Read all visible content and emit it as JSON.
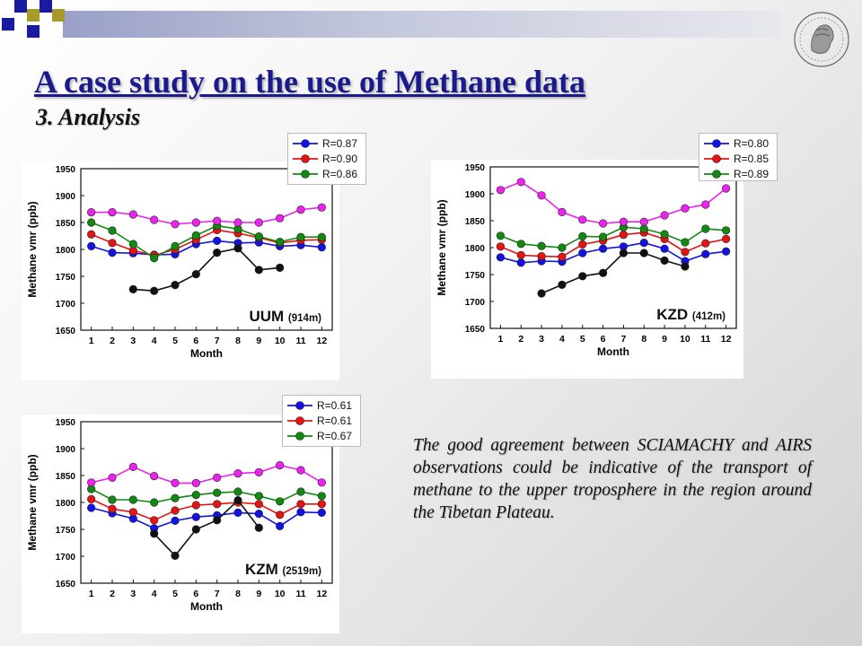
{
  "slide": {
    "title": "A case study on the use of Methane data",
    "subtitle": "3. Analysis",
    "body_text": "The good agreement between SCIAMACHY and AIRS observations could be indicative of the transport of methane to the upper troposphere in the region around the Tibetan Plateau."
  },
  "colors": {
    "title": "#1a1a8c",
    "series": [
      "#1212e6",
      "#e81212",
      "#128a12",
      "#ee22ee",
      "#111111"
    ]
  },
  "icons": [
    "university-logo-icon"
  ],
  "chart_data": [
    {
      "type": "line",
      "station": "UUM",
      "elevation": "(914m)",
      "xlabel": "Month",
      "ylabel": "Methane vmr (ppb)",
      "x": [
        1,
        2,
        3,
        4,
        5,
        6,
        7,
        8,
        9,
        10,
        11,
        12
      ],
      "ylim": [
        1650,
        1950
      ],
      "yticks": [
        1650,
        1700,
        1750,
        1800,
        1850,
        1900,
        1950
      ],
      "grid": false,
      "legend": [
        {
          "label": "R=0.87",
          "color": "#1212e6"
        },
        {
          "label": "R=0.90",
          "color": "#e81212"
        },
        {
          "label": "R=0.86",
          "color": "#128a12"
        }
      ],
      "series": [
        {
          "color": "#1212e6",
          "values": [
            1806,
            1794,
            1793,
            1790,
            1791,
            1810,
            1816,
            1812,
            1813,
            1806,
            1808,
            1804
          ]
        },
        {
          "color": "#e81212",
          "values": [
            1828,
            1812,
            1798,
            1789,
            1800,
            1818,
            1836,
            1830,
            1822,
            1812,
            1817,
            1818
          ]
        },
        {
          "color": "#128a12",
          "values": [
            1850,
            1835,
            1810,
            1784,
            1806,
            1826,
            1844,
            1838,
            1824,
            1814,
            1823,
            1823
          ]
        },
        {
          "color": "#ee22ee",
          "values": [
            1869,
            1869,
            1865,
            1855,
            1847,
            1850,
            1853,
            1850,
            1850,
            1858,
            1874,
            1878
          ]
        },
        {
          "color": "#111111",
          "values": [
            null,
            null,
            1726,
            1723,
            1734,
            1754,
            1794,
            1802,
            1762,
            1766,
            null,
            null
          ]
        }
      ]
    },
    {
      "type": "line",
      "station": "KZD",
      "elevation": "(412m)",
      "xlabel": "Month",
      "ylabel": "Methane vmr (ppb)",
      "x": [
        1,
        2,
        3,
        4,
        5,
        6,
        7,
        8,
        9,
        10,
        11,
        12
      ],
      "ylim": [
        1650,
        1950
      ],
      "yticks": [
        1650,
        1700,
        1750,
        1800,
        1850,
        1900,
        1950
      ],
      "grid": false,
      "legend": [
        {
          "label": "R=0.80",
          "color": "#1212e6"
        },
        {
          "label": "R=0.85",
          "color": "#e81212"
        },
        {
          "label": "R=0.89",
          "color": "#128a12"
        }
      ],
      "series": [
        {
          "color": "#1212e6",
          "values": [
            1782,
            1772,
            1775,
            1774,
            1790,
            1798,
            1802,
            1809,
            1798,
            1775,
            1788,
            1793
          ]
        },
        {
          "color": "#e81212",
          "values": [
            1802,
            1786,
            1784,
            1783,
            1806,
            1813,
            1824,
            1828,
            1816,
            1792,
            1808,
            1816
          ]
        },
        {
          "color": "#128a12",
          "values": [
            1822,
            1807,
            1803,
            1800,
            1821,
            1820,
            1838,
            1835,
            1825,
            1810,
            1835,
            1832
          ]
        },
        {
          "color": "#ee22ee",
          "values": [
            1907,
            1922,
            1897,
            1866,
            1852,
            1845,
            1848,
            1848,
            1860,
            1873,
            1880,
            1910
          ]
        },
        {
          "color": "#111111",
          "values": [
            null,
            null,
            1715,
            1731,
            1747,
            1753,
            1790,
            1790,
            1776,
            1765,
            null,
            null
          ]
        }
      ]
    },
    {
      "type": "line",
      "station": "KZM",
      "elevation": "(2519m)",
      "xlabel": "Month",
      "ylabel": "Methane vmr (ppb)",
      "x": [
        1,
        2,
        3,
        4,
        5,
        6,
        7,
        8,
        9,
        10,
        11,
        12
      ],
      "ylim": [
        1650,
        1950
      ],
      "yticks": [
        1650,
        1700,
        1750,
        1800,
        1850,
        1900,
        1950
      ],
      "grid": false,
      "legend": [
        {
          "label": "R=0.61",
          "color": "#1212e6"
        },
        {
          "label": "R=0.61",
          "color": "#e81212"
        },
        {
          "label": "R=0.67",
          "color": "#128a12"
        }
      ],
      "series": [
        {
          "color": "#1212e6",
          "values": [
            1790,
            1780,
            1770,
            1752,
            1766,
            1773,
            1776,
            1781,
            1779,
            1756,
            1782,
            1781
          ]
        },
        {
          "color": "#e81212",
          "values": [
            1806,
            1788,
            1782,
            1767,
            1785,
            1795,
            1797,
            1800,
            1797,
            1777,
            1797,
            1797
          ]
        },
        {
          "color": "#128a12",
          "values": [
            1825,
            1805,
            1805,
            1800,
            1808,
            1814,
            1818,
            1820,
            1812,
            1802,
            1820,
            1812
          ]
        },
        {
          "color": "#ee22ee",
          "values": [
            1837,
            1846,
            1866,
            1849,
            1836,
            1836,
            1846,
            1854,
            1856,
            1869,
            1860,
            1837
          ]
        },
        {
          "color": "#111111",
          "values": [
            null,
            null,
            null,
            1742,
            1701,
            1750,
            1767,
            1804,
            1753,
            null,
            null,
            null
          ]
        }
      ]
    }
  ]
}
